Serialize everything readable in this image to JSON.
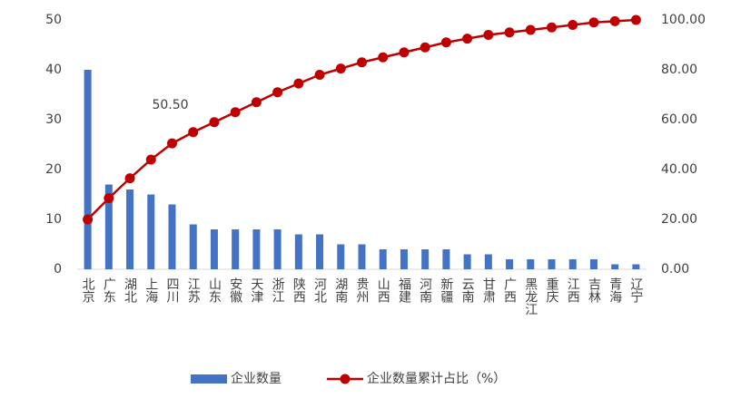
{
  "chart_data": {
    "type": "bar",
    "categories": [
      "北京",
      "广东",
      "湖北",
      "上海",
      "四川",
      "江苏",
      "山东",
      "安徽",
      "天津",
      "浙江",
      "陕西",
      "河北",
      "湖南",
      "贵州",
      "山西",
      "福建",
      "河南",
      "新疆",
      "云南",
      "甘肃",
      "广西",
      "黑龙江",
      "重庆",
      "江西",
      "吉林",
      "青海",
      "辽宁"
    ],
    "series": [
      {
        "name": "企业数量",
        "type": "bar",
        "color": "#4472c4",
        "values": [
          40,
          17,
          16,
          15,
          13,
          9,
          8,
          8,
          8,
          8,
          7,
          7,
          5,
          5,
          4,
          4,
          4,
          4,
          3,
          3,
          2,
          2,
          2,
          2,
          2,
          1,
          1
        ]
      },
      {
        "name": "企业数量累计占比（%）",
        "type": "line",
        "color": "#c00000",
        "axis": "y2",
        "values": [
          20,
          28.5,
          36.5,
          44,
          50.5,
          55,
          59,
          63,
          67,
          71,
          74.5,
          78,
          80.5,
          83,
          85,
          87,
          89,
          91,
          92.5,
          94,
          95,
          96,
          97,
          98,
          99,
          99.5,
          100
        ],
        "value_labels": [
          null,
          null,
          null,
          null,
          "50.50",
          null,
          null,
          null,
          null,
          null,
          null,
          null,
          null,
          null,
          null,
          null,
          null,
          null,
          null,
          null,
          null,
          null,
          null,
          null,
          null,
          null,
          null
        ]
      }
    ],
    "ylim": [
      0,
      50
    ],
    "yticks": [
      0,
      10,
      20,
      30,
      40,
      50
    ],
    "y2lim": [
      0,
      100
    ],
    "y2ticks": [
      {
        "value": 0,
        "label": "0.00"
      },
      {
        "value": 20,
        "label": "20.00"
      },
      {
        "value": 40,
        "label": "40.00"
      },
      {
        "value": 60,
        "label": "60.00"
      },
      {
        "value": 80,
        "label": "80.00"
      },
      {
        "value": 100,
        "label": "100.00"
      }
    ],
    "grid": false,
    "legend": "bottom"
  }
}
